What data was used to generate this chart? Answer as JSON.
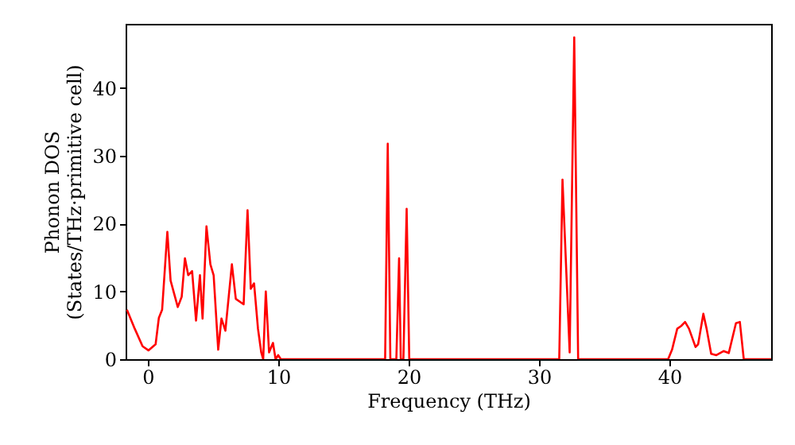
{
  "chart_data": {
    "type": "line",
    "xlabel": "Frequency (THz)",
    "ylabel": "Phonon DOS\n(States/THz·primitive cell)",
    "x": [
      -1.6,
      -1.0,
      -0.4,
      0.05,
      0.6,
      0.85,
      1.1,
      1.5,
      1.75,
      2.3,
      2.6,
      2.85,
      3.1,
      3.4,
      3.7,
      4.0,
      4.2,
      4.5,
      4.8,
      5.05,
      5.4,
      5.65,
      5.95,
      6.45,
      6.75,
      7.35,
      7.65,
      7.9,
      8.15,
      8.45,
      8.7,
      8.85,
      9.05,
      9.3,
      9.6,
      9.8,
      10.0,
      10.2,
      18.2,
      18.4,
      18.6,
      19.06,
      19.27,
      19.4,
      19.6,
      19.85,
      20.05,
      31.55,
      31.8,
      32.35,
      32.7,
      33.0,
      39.9,
      40.2,
      40.6,
      40.9,
      41.2,
      41.5,
      42.0,
      42.2,
      42.6,
      42.85,
      43.2,
      43.6,
      44.15,
      44.55,
      45.1,
      45.4,
      45.7,
      47.8
    ],
    "series": [
      {
        "color": "#ff0000",
        "values": [
          7.3,
          4.5,
          1.9,
          1.3,
          2.2,
          6.1,
          7.3,
          18.8,
          11.6,
          7.7,
          9.2,
          14.9,
          12.4,
          13.0,
          5.7,
          12.4,
          6.0,
          19.6,
          14.0,
          12.4,
          1.4,
          6.0,
          4.2,
          14.0,
          8.9,
          8.1,
          22.0,
          10.4,
          11.2,
          4.5,
          1.0,
          0,
          10.0,
          1.0,
          2.4,
          0,
          0.6,
          0,
          0,
          31.8,
          0,
          0,
          14.9,
          0,
          0,
          22.2,
          0,
          0,
          26.5,
          1.0,
          47.5,
          0,
          0,
          1.4,
          4.5,
          4.9,
          5.5,
          4.5,
          1.8,
          2.2,
          6.7,
          4.5,
          0.8,
          0.6,
          1.2,
          0.9,
          5.3,
          5.5,
          0,
          0
        ]
      }
    ],
    "xlim": [
      -1.7,
      47.8
    ],
    "ylim": [
      0,
      49.5
    ],
    "xticks": [
      0,
      10,
      20,
      30,
      40
    ],
    "yticks": [
      0,
      10,
      20,
      30,
      40
    ],
    "grid": false,
    "marker": "none",
    "line_style": "solid"
  }
}
